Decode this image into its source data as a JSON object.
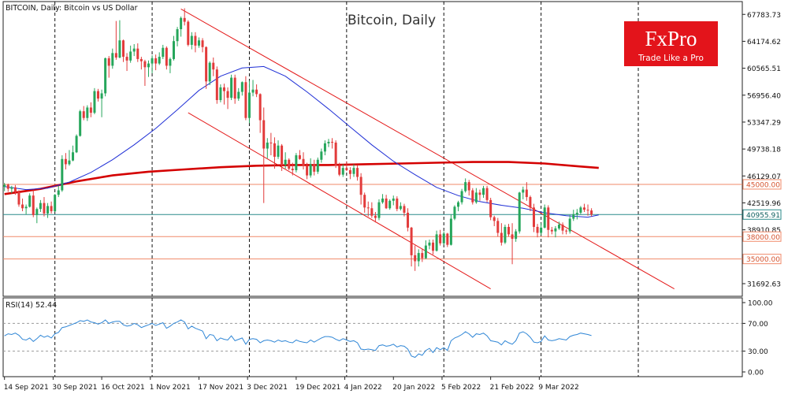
{
  "header": {
    "symbol_info": "BITCOIN, Daily:  Bitcoin vs US Dollar",
    "watermark": "Bitcoin, Daily"
  },
  "logo": {
    "brand": "FxPro",
    "tagline": "Trade Like a Pro",
    "color": "#e3141b"
  },
  "rsi_panel": {
    "label": "RSI(14) 52.44",
    "current": 52.44,
    "levels": [
      30,
      70
    ],
    "ticks": [
      "100.00",
      "70.00",
      "30.00",
      "0.00"
    ]
  },
  "price_axis": {
    "ticks": [
      "67783.73",
      "64174.62",
      "60565.51",
      "56956.40",
      "53347.29",
      "49738.18",
      "46129.07",
      "42519.96",
      "38910.85",
      "31692.63"
    ]
  },
  "price_tags": [
    {
      "label": "45000.00",
      "value": 45000,
      "kind": "level"
    },
    {
      "label": "40955.91",
      "value": 40955.91,
      "kind": "current"
    },
    {
      "label": "38000.00",
      "value": 38000,
      "kind": "level"
    },
    {
      "label": "35000.00",
      "value": 35000,
      "kind": "level"
    }
  ],
  "date_axis": {
    "labels": [
      "14 Sep 2021",
      "30 Sep 2021",
      "16 Oct 2021",
      "1 Nov 2021",
      "17 Nov 2021",
      "3 Dec 2021",
      "19 Dec 2021",
      "4 Jan 2022",
      "20 Jan 2022",
      "5 Feb 2022",
      "21 Feb 2022",
      "9 Mar 2022"
    ]
  },
  "colors": {
    "bull": "#26a65b",
    "bear": "#e23b3b",
    "ma_fast": "#1f2fd6",
    "ma_slow": "#d40000",
    "channel": "#e41818",
    "level": "#f08a6a",
    "current_line": "#2a8a8a",
    "rsi": "#2f86d6",
    "vertical_lines": "#111111"
  },
  "chart_data": {
    "type": "candlestick",
    "timeframe": "Daily",
    "ylim": [
      30000,
      69500
    ],
    "rsi_ylim": [
      0,
      100
    ],
    "ohlc": [
      [
        44680,
        45200,
        44100,
        44950
      ],
      [
        44950,
        45100,
        44000,
        44400
      ],
      [
        44400,
        44800,
        43800,
        44600
      ],
      [
        44600,
        44900,
        43600,
        44000
      ],
      [
        44000,
        44200,
        42000,
        42300
      ],
      [
        42300,
        43100,
        41400,
        41800
      ],
      [
        41800,
        42300,
        41000,
        42000
      ],
      [
        42000,
        43800,
        41900,
        43500
      ],
      [
        43500,
        44200,
        40600,
        40900
      ],
      [
        40900,
        41900,
        39800,
        41700
      ],
      [
        41700,
        42900,
        41300,
        42500
      ],
      [
        42500,
        43300,
        40700,
        41100
      ],
      [
        41100,
        42500,
        40500,
        42100
      ],
      [
        42100,
        42700,
        41100,
        41400
      ],
      [
        41400,
        43700,
        41300,
        43600
      ],
      [
        43600,
        44800,
        43300,
        44200
      ],
      [
        44200,
        48900,
        44000,
        48400
      ],
      [
        48400,
        49200,
        47000,
        47700
      ],
      [
        47700,
        49600,
        47500,
        48200
      ],
      [
        48200,
        50200,
        48100,
        49300
      ],
      [
        49300,
        51700,
        49200,
        51500
      ],
      [
        51500,
        55000,
        51400,
        54800
      ],
      [
        54800,
        55500,
        53600,
        53900
      ],
      [
        53900,
        55600,
        53500,
        55300
      ],
      [
        55300,
        56000,
        54000,
        54600
      ],
      [
        54600,
        57900,
        54400,
        57500
      ],
      [
        57500,
        57800,
        56100,
        56500
      ],
      [
        56500,
        57700,
        54000,
        57200
      ],
      [
        57200,
        62000,
        56800,
        61900
      ],
      [
        61900,
        62200,
        59300,
        60900
      ],
      [
        60900,
        63200,
        60500,
        62600
      ],
      [
        62600,
        66900,
        61700,
        62000
      ],
      [
        62000,
        67000,
        61900,
        64300
      ],
      [
        64300,
        64400,
        61400,
        62100
      ],
      [
        62100,
        62600,
        60200,
        61600
      ],
      [
        61600,
        63600,
        61300,
        62800
      ],
      [
        62800,
        63800,
        62200,
        63200
      ],
      [
        63200,
        63900,
        61400,
        61800
      ],
      [
        61800,
        62100,
        60400,
        61500
      ],
      [
        61500,
        61700,
        58200,
        60700
      ],
      [
        60700,
        61600,
        59400,
        61200
      ],
      [
        61200,
        62300,
        59900,
        61900
      ],
      [
        61900,
        62400,
        60300,
        61200
      ],
      [
        61200,
        62700,
        61000,
        62100
      ],
      [
        62100,
        63700,
        61800,
        63300
      ],
      [
        63300,
        63500,
        60400,
        60900
      ],
      [
        60900,
        62000,
        59900,
        61800
      ],
      [
        61800,
        64900,
        61600,
        64200
      ],
      [
        64200,
        66100,
        63500,
        65800
      ],
      [
        65800,
        67500,
        64800,
        67300
      ],
      [
        67300,
        68600,
        66300,
        66800
      ],
      [
        66800,
        67000,
        63500,
        63700
      ],
      [
        63700,
        65400,
        63100,
        64900
      ],
      [
        64900,
        65400,
        62700,
        63600
      ],
      [
        63600,
        64700,
        63300,
        64300
      ],
      [
        64300,
        64600,
        62700,
        63400
      ],
      [
        63400,
        63500,
        57800,
        58800
      ],
      [
        58800,
        61500,
        58300,
        61300
      ],
      [
        61300,
        62000,
        59500,
        60400
      ],
      [
        60400,
        60800,
        55800,
        56300
      ],
      [
        56300,
        58400,
        56000,
        58000
      ],
      [
        58000,
        58500,
        55700,
        57500
      ],
      [
        57500,
        58000,
        55100,
        56600
      ],
      [
        56600,
        59700,
        56300,
        59300
      ],
      [
        59300,
        59700,
        55800,
        56500
      ],
      [
        56500,
        57900,
        56200,
        57400
      ],
      [
        57400,
        58800,
        56900,
        58700
      ],
      [
        58700,
        59500,
        53600,
        53900
      ],
      [
        53900,
        58900,
        53200,
        57300
      ],
      [
        57300,
        59000,
        56800,
        57700
      ],
      [
        57700,
        58400,
        56700,
        57100
      ],
      [
        57100,
        57200,
        51900,
        53600
      ],
      [
        53600,
        55300,
        42500,
        49800
      ],
      [
        49800,
        51200,
        48500,
        50600
      ],
      [
        50600,
        51900,
        48900,
        50500
      ],
      [
        50500,
        51300,
        47100,
        48700
      ],
      [
        48700,
        50900,
        48400,
        50200
      ],
      [
        50200,
        50400,
        46800,
        47600
      ],
      [
        47600,
        49300,
        47100,
        48300
      ],
      [
        48300,
        48500,
        46900,
        47100
      ],
      [
        47100,
        47900,
        46200,
        46900
      ],
      [
        46900,
        49200,
        46600,
        48900
      ],
      [
        48900,
        49600,
        48300,
        48400
      ],
      [
        48400,
        49300,
        47000,
        47500
      ],
      [
        47500,
        47900,
        45700,
        46200
      ],
      [
        46200,
        48500,
        45900,
        47700
      ],
      [
        47700,
        48300,
        46200,
        46700
      ],
      [
        46700,
        48600,
        46400,
        48300
      ],
      [
        48300,
        49800,
        47900,
        49400
      ],
      [
        49400,
        50900,
        48900,
        50500
      ],
      [
        50500,
        51100,
        50000,
        50700
      ],
      [
        50700,
        51200,
        49800,
        50600
      ],
      [
        50600,
        50900,
        47200,
        47500
      ],
      [
        47500,
        47900,
        46100,
        46300
      ],
      [
        46300,
        47700,
        46000,
        47200
      ],
      [
        47200,
        48100,
        46800,
        46900
      ],
      [
        46900,
        47300,
        45700,
        46400
      ],
      [
        46400,
        47700,
        46000,
        47200
      ],
      [
        47200,
        47600,
        45500,
        46000
      ],
      [
        46000,
        46500,
        42300,
        43600
      ],
      [
        43600,
        43900,
        41200,
        41900
      ],
      [
        41900,
        42700,
        40700,
        41800
      ],
      [
        41800,
        42600,
        40500,
        40800
      ],
      [
        40800,
        41300,
        39900,
        40500
      ],
      [
        40500,
        43000,
        40200,
        42600
      ],
      [
        42600,
        43700,
        42400,
        43100
      ],
      [
        43100,
        43600,
        41700,
        41800
      ],
      [
        41800,
        43000,
        41600,
        42800
      ],
      [
        42800,
        43500,
        42200,
        43100
      ],
      [
        43100,
        43400,
        41400,
        41700
      ],
      [
        41700,
        42600,
        41500,
        42100
      ],
      [
        42100,
        42400,
        40700,
        41200
      ],
      [
        41200,
        41800,
        38700,
        39200
      ],
      [
        39200,
        39300,
        34000,
        35500
      ],
      [
        35500,
        36800,
        33400,
        34700
      ],
      [
        34700,
        36300,
        34000,
        35800
      ],
      [
        35800,
        36400,
        34600,
        35100
      ],
      [
        35100,
        37500,
        35000,
        36800
      ],
      [
        36800,
        37600,
        36300,
        37200
      ],
      [
        37200,
        37600,
        35600,
        36100
      ],
      [
        36100,
        38800,
        36000,
        38300
      ],
      [
        38300,
        38900,
        36800,
        37100
      ],
      [
        37100,
        38700,
        36900,
        38400
      ],
      [
        38400,
        38500,
        36600,
        36900
      ],
      [
        36900,
        41000,
        36800,
        40400
      ],
      [
        40400,
        42200,
        40200,
        42000
      ],
      [
        42000,
        42800,
        41400,
        42600
      ],
      [
        42600,
        44400,
        42300,
        44100
      ],
      [
        44100,
        45800,
        43900,
        45300
      ],
      [
        45300,
        45600,
        43500,
        44200
      ],
      [
        44200,
        44500,
        42300,
        42600
      ],
      [
        42600,
        44500,
        42400,
        43900
      ],
      [
        43900,
        44300,
        42800,
        43600
      ],
      [
        43600,
        44800,
        43200,
        44500
      ],
      [
        44500,
        44800,
        42600,
        42900
      ],
      [
        42900,
        43200,
        40200,
        40600
      ],
      [
        40600,
        40800,
        39400,
        40100
      ],
      [
        40100,
        40500,
        38000,
        38500
      ],
      [
        38500,
        39800,
        36800,
        37200
      ],
      [
        37200,
        39600,
        37000,
        39300
      ],
      [
        39300,
        39700,
        38000,
        38300
      ],
      [
        38300,
        39800,
        34300,
        37700
      ],
      [
        37700,
        39000,
        37300,
        38700
      ],
      [
        38700,
        44000,
        38400,
        43900
      ],
      [
        43900,
        44700,
        43000,
        44300
      ],
      [
        44300,
        45300,
        42800,
        43300
      ],
      [
        43300,
        43500,
        41400,
        41900
      ],
      [
        41900,
        42400,
        38600,
        39300
      ],
      [
        39300,
        39700,
        37900,
        38500
      ],
      [
        38500,
        39800,
        38200,
        39200
      ],
      [
        39200,
        42300,
        39100,
        41900
      ],
      [
        41900,
        42200,
        37900,
        38900
      ],
      [
        38900,
        39300,
        38300,
        38700
      ],
      [
        38700,
        39400,
        37900,
        39100
      ],
      [
        39100,
        40000,
        38900,
        39600
      ],
      [
        39600,
        39900,
        38300,
        38800
      ],
      [
        38800,
        39000,
        38300,
        38700
      ],
      [
        38700,
        40900,
        38400,
        40400
      ],
      [
        40400,
        41600,
        40100,
        41000
      ],
      [
        41000,
        41700,
        40300,
        41200
      ],
      [
        41200,
        42100,
        41000,
        41900
      ],
      [
        41900,
        42400,
        41300,
        41600
      ],
      [
        41600,
        42300,
        40800,
        41500
      ],
      [
        41500,
        41800,
        40700,
        40956
      ]
    ],
    "ma_fast": [
      [
        0,
        44700
      ],
      [
        6,
        44300
      ],
      [
        12,
        44500
      ],
      [
        18,
        45300
      ],
      [
        24,
        46600
      ],
      [
        30,
        48300
      ],
      [
        36,
        50300
      ],
      [
        42,
        52500
      ],
      [
        48,
        55000
      ],
      [
        54,
        57600
      ],
      [
        60,
        59500
      ],
      [
        66,
        60600
      ],
      [
        72,
        60800
      ],
      [
        78,
        59500
      ],
      [
        84,
        57400
      ],
      [
        90,
        55100
      ],
      [
        96,
        52700
      ],
      [
        102,
        50300
      ],
      [
        108,
        48100
      ],
      [
        114,
        46300
      ],
      [
        120,
        44600
      ],
      [
        126,
        43500
      ],
      [
        132,
        42700
      ],
      [
        138,
        42200
      ],
      [
        144,
        41800
      ],
      [
        150,
        41200
      ],
      [
        156,
        40800
      ],
      [
        162,
        40600
      ],
      [
        165,
        40900
      ]
    ],
    "ma_slow": [
      [
        0,
        43700
      ],
      [
        10,
        44400
      ],
      [
        20,
        45400
      ],
      [
        30,
        46200
      ],
      [
        40,
        46700
      ],
      [
        50,
        47000
      ],
      [
        60,
        47300
      ],
      [
        70,
        47500
      ],
      [
        80,
        47600
      ],
      [
        90,
        47600
      ],
      [
        100,
        47700
      ],
      [
        110,
        47800
      ],
      [
        120,
        47900
      ],
      [
        130,
        48000
      ],
      [
        140,
        48000
      ],
      [
        150,
        47800
      ],
      [
        160,
        47400
      ],
      [
        165,
        47200
      ]
    ],
    "channel": [
      [
        [
          49,
          68500
        ],
        [
          186,
          31000
        ]
      ],
      [
        [
          51,
          54600
        ],
        [
          135,
          31000
        ]
      ]
    ],
    "rsi": [
      52,
      55,
      54,
      56,
      53,
      47,
      46,
      49,
      44,
      48,
      53,
      50,
      52,
      49,
      55,
      57,
      64,
      65,
      67,
      69,
      71,
      74,
      73,
      75,
      72,
      71,
      69,
      71,
      75,
      70,
      72,
      73,
      73,
      68,
      66,
      67,
      70,
      68,
      64,
      66,
      68,
      70,
      67,
      69,
      71,
      63,
      66,
      70,
      72,
      75,
      72,
      62,
      66,
      63,
      61,
      59,
      48,
      54,
      53,
      45,
      49,
      47,
      46,
      52,
      45,
      47,
      49,
      40,
      47,
      48,
      47,
      42,
      45,
      46,
      45,
      43,
      46,
      44,
      45,
      43,
      42,
      46,
      44,
      43,
      42,
      46,
      43,
      46,
      49,
      51,
      51,
      50,
      47,
      45,
      48,
      46,
      44,
      45,
      42,
      33,
      32,
      33,
      32,
      31,
      38,
      39,
      37,
      38,
      40,
      36,
      38,
      37,
      33,
      23,
      21,
      26,
      24,
      31,
      34,
      28,
      35,
      32,
      35,
      31,
      45,
      49,
      51,
      54,
      58,
      55,
      50,
      55,
      54,
      56,
      52,
      45,
      44,
      43,
      39,
      45,
      42,
      40,
      45,
      56,
      58,
      55,
      50,
      43,
      42,
      44,
      52,
      46,
      45,
      46,
      48,
      47,
      46,
      51,
      53,
      54,
      56,
      55,
      54,
      52.44
    ]
  }
}
